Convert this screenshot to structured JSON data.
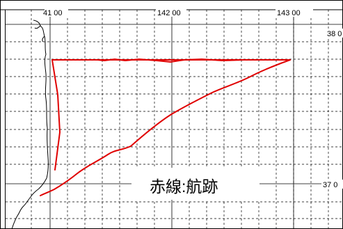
{
  "map": {
    "longitude_labels": [
      "41 00",
      "142 00",
      "143 00"
    ],
    "latitude_labels": [
      "38 0",
      "37 0"
    ],
    "legend_text": "赤線:航跡",
    "colors": {
      "track": "#e00000",
      "grid": "#000000",
      "coastline": "#000000",
      "background": "#ffffff"
    }
  }
}
